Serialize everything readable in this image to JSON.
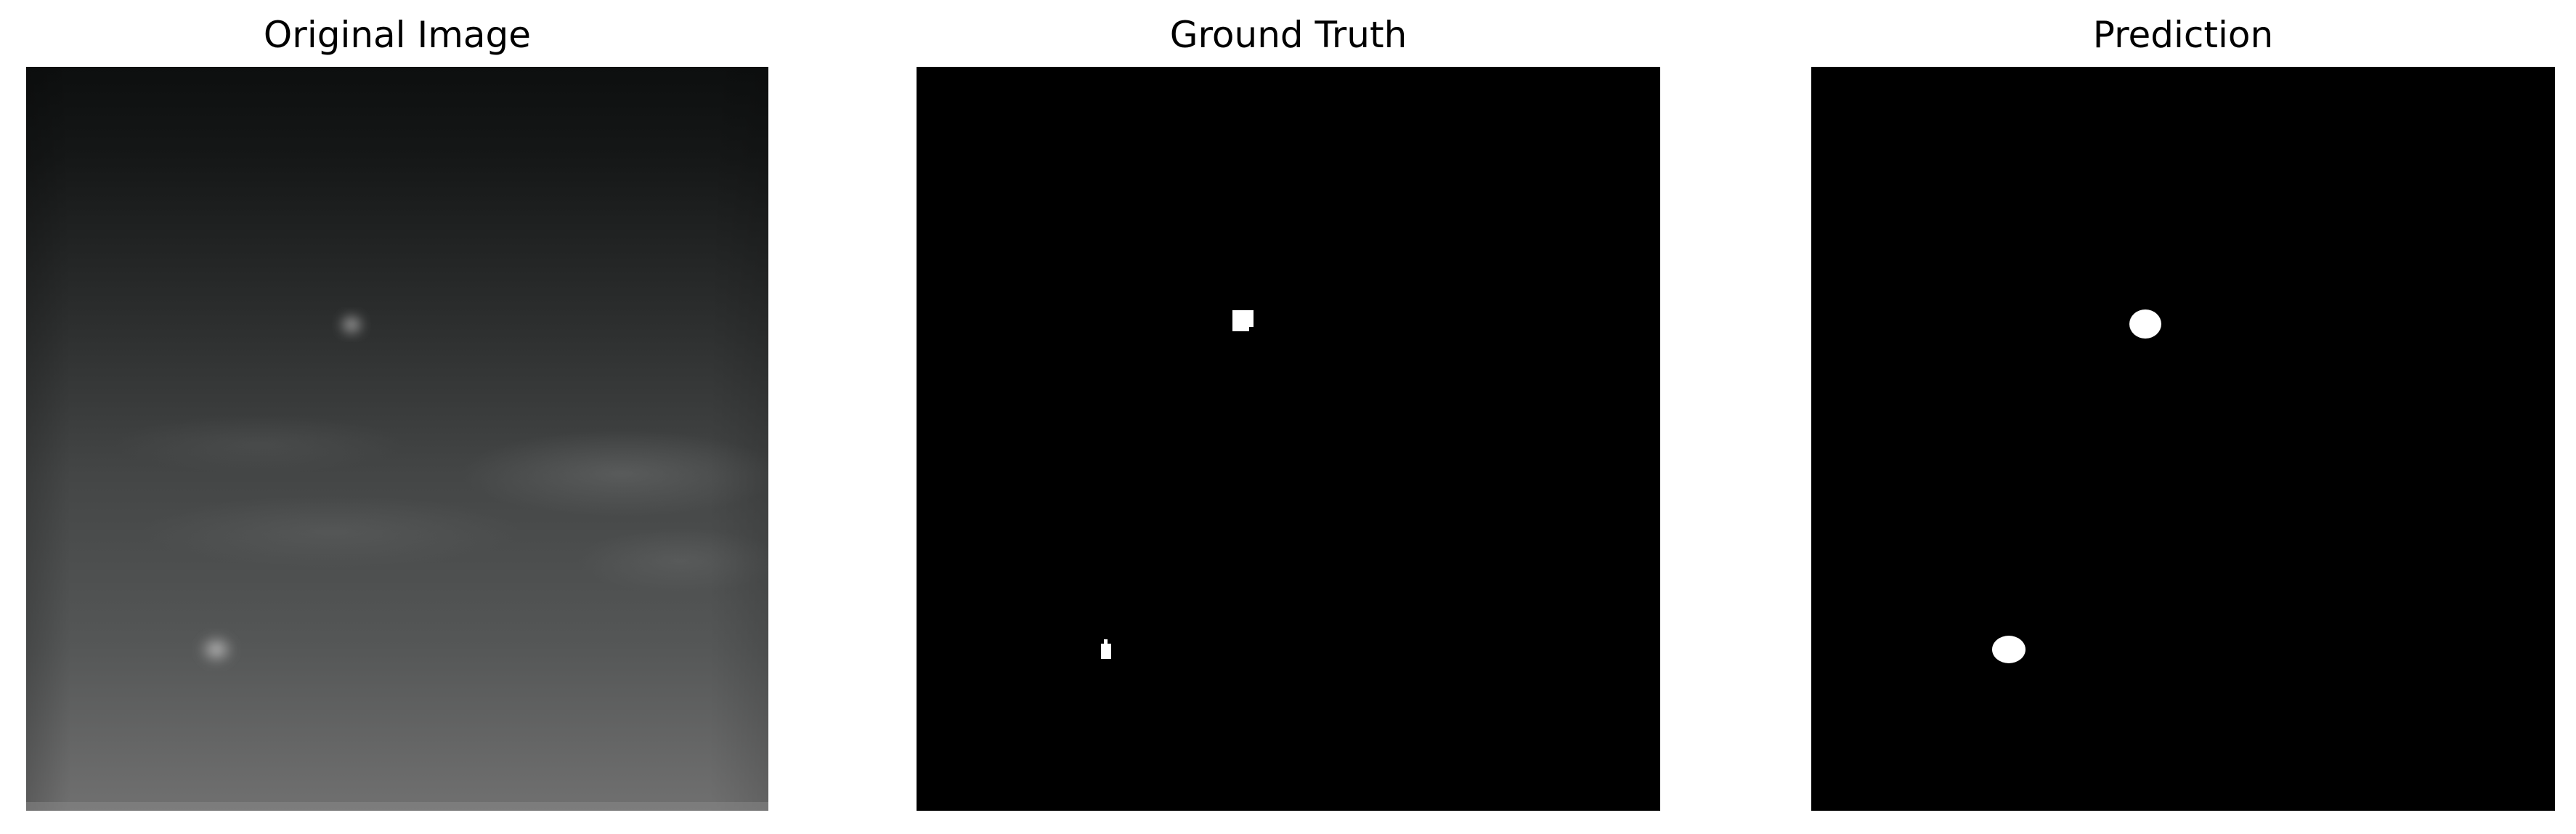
{
  "panels": [
    {
      "title": "Original Image"
    },
    {
      "title": "Ground Truth"
    },
    {
      "title": "Prediction"
    }
  ],
  "colors": {
    "background": "#ffffff",
    "mask_background": "#000000",
    "mask_foreground": "#ffffff",
    "image_dark": "#0d0f0f",
    "image_light": "#6f6f6f"
  }
}
